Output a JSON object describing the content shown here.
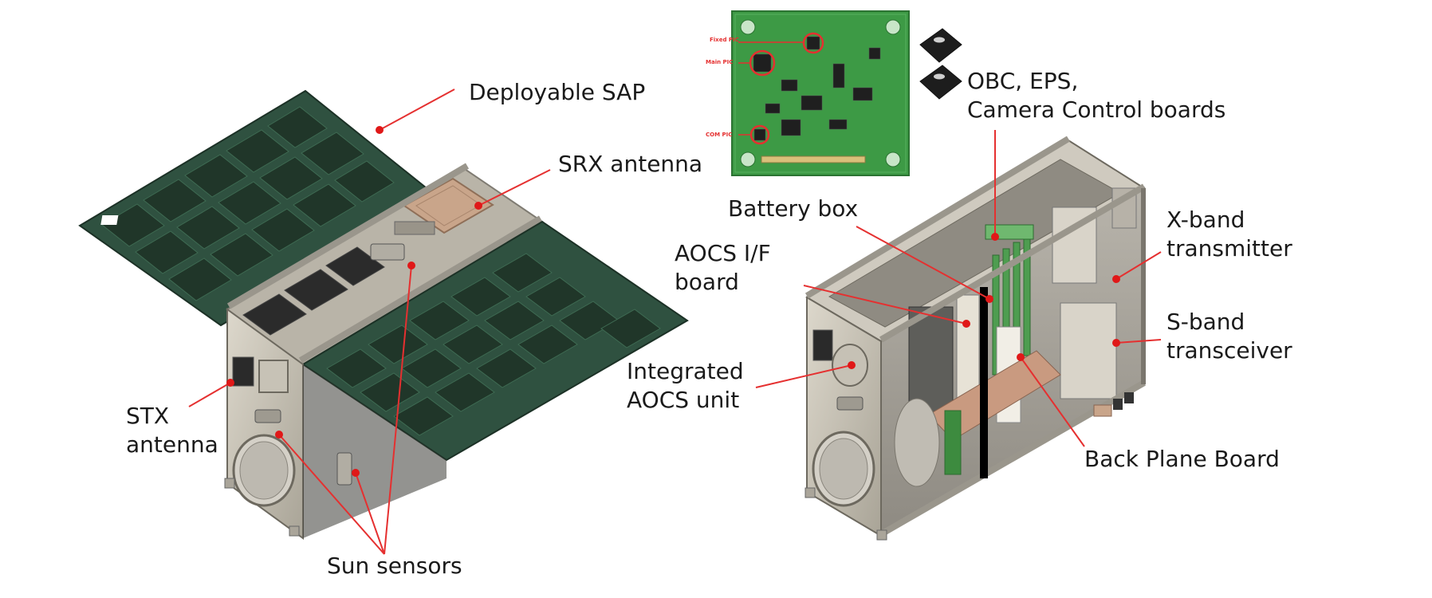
{
  "labels": {
    "deployable_sap": "Deployable SAP",
    "srx_antenna": "SRX antenna",
    "stx_antenna_line1": "STX",
    "stx_antenna_line2": "antenna",
    "sun_sensors": "Sun sensors",
    "obc_line1": "OBC, EPS,",
    "obc_line2": "Camera Control boards",
    "battery_box": "Battery box",
    "aocs_if_line1": "AOCS I/F",
    "aocs_if_line2": "board",
    "integrated_aocs_line1": "Integrated",
    "integrated_aocs_line2": "AOCS unit",
    "xband_line1": "X-band",
    "xband_line2": "transmitter",
    "sband_line1": "S-band",
    "sband_line2": "transceiver",
    "back_plane": "Back Plane Board"
  },
  "pcb_labels": {
    "fpga_pic": "Fixed PIC",
    "main_pic": "Main PIC",
    "com_pic": "COM PIC"
  },
  "colors": {
    "leader_line": "#e53030",
    "marker": "#e01818",
    "solar_panel": "#2e4f3c",
    "solar_cell": "#1e3327",
    "chassis": "#c9c4b8",
    "pcb": "#3d9a45"
  }
}
